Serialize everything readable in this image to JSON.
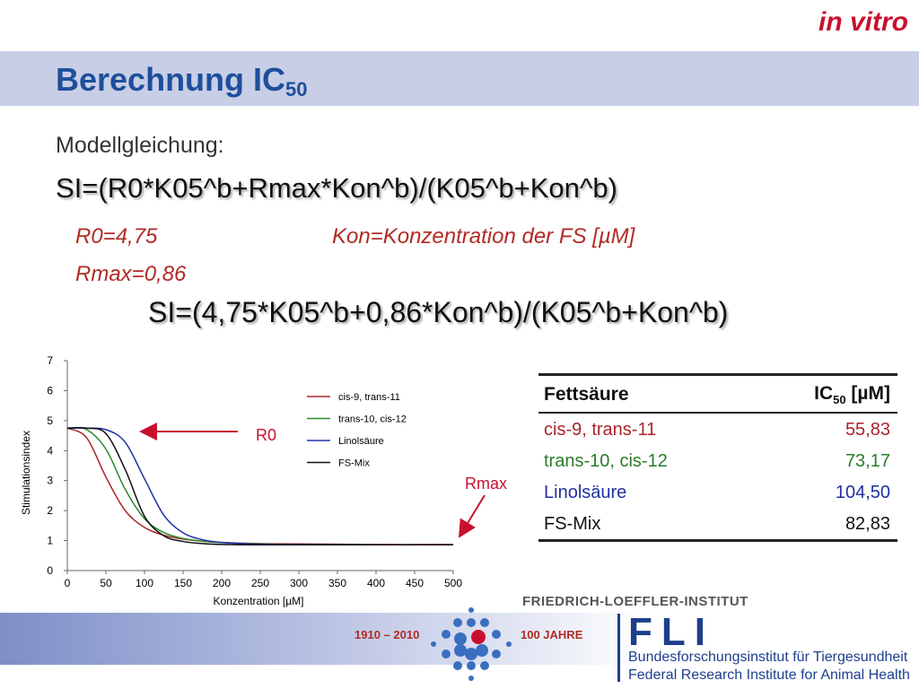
{
  "header": {
    "tag": "in vitro",
    "title": {
      "text": "Berechnung IC",
      "sub": "50"
    }
  },
  "body": {
    "model_label": "Modellgleichung:",
    "formula_general": "SI=(R0*K05^b+Rmax*Kon^b)/(K05^b+Kon^b)",
    "r0": "R0=4,75",
    "kon": "Kon=Konzentration der FS [µM]",
    "rmax": "Rmax=0,86",
    "formula_specific": "SI=(4,75*K05^b+0,86*Kon^b)/(K05^b+Kon^b)"
  },
  "chart_data": {
    "type": "line",
    "xlabel": "Konzentration [µM]",
    "ylabel": "Stimulationsindex",
    "x": [
      0,
      25,
      50,
      75,
      100,
      125,
      150,
      175,
      200,
      250,
      300,
      400,
      500
    ],
    "series": [
      {
        "name": "cis-9, trans-11",
        "color": "#a8242a",
        "values": [
          4.75,
          4.43,
          3.12,
          2.0,
          1.44,
          1.18,
          1.05,
          0.98,
          0.94,
          0.9,
          0.89,
          0.87,
          0.87
        ]
      },
      {
        "name": "trans-10, cis-12",
        "color": "#2a8a2a",
        "values": [
          4.75,
          4.7,
          4.05,
          2.71,
          1.73,
          1.27,
          1.07,
          0.98,
          0.93,
          0.89,
          0.87,
          0.86,
          0.86
        ]
      },
      {
        "name": "Linolsäure",
        "color": "#2030a8",
        "values": [
          4.75,
          4.75,
          4.7,
          4.28,
          3.06,
          1.85,
          1.26,
          1.03,
          0.94,
          0.88,
          0.87,
          0.86,
          0.86
        ]
      },
      {
        "name": "FS-Mix",
        "color": "#111111",
        "values": [
          4.75,
          4.75,
          4.57,
          3.37,
          1.81,
          1.16,
          0.97,
          0.9,
          0.87,
          0.86,
          0.86,
          0.86,
          0.86
        ]
      }
    ],
    "xlim": [
      0,
      500
    ],
    "ylim": [
      0,
      7
    ],
    "xticks": [
      0,
      50,
      100,
      150,
      200,
      250,
      300,
      350,
      400,
      450,
      500
    ],
    "yticks": [
      0,
      1,
      2,
      3,
      4,
      5,
      6,
      7
    ],
    "annotations": [
      "R0",
      "Rmax"
    ]
  },
  "table": {
    "header": [
      "Fettsäure",
      {
        "text": "IC",
        "sub": "50",
        "unit": " [µM]"
      }
    ],
    "rows": [
      [
        "cis-9, trans-11",
        "55,83"
      ],
      [
        "trans-10, cis-12",
        "73,17"
      ],
      [
        "Linolsäure",
        "104,50"
      ],
      [
        "FS-Mix",
        "82,83"
      ]
    ]
  },
  "footer": {
    "institute": "FRIEDRICH-LOEFFLER-INSTITUT",
    "years": "1910 – 2010",
    "anniversary": "100 JAHRE",
    "acronym": "FLI",
    "name_de": "Bundesforschungsinstitut für Tiergesundheit",
    "name_en": "Federal Research Institute for Animal Health"
  }
}
